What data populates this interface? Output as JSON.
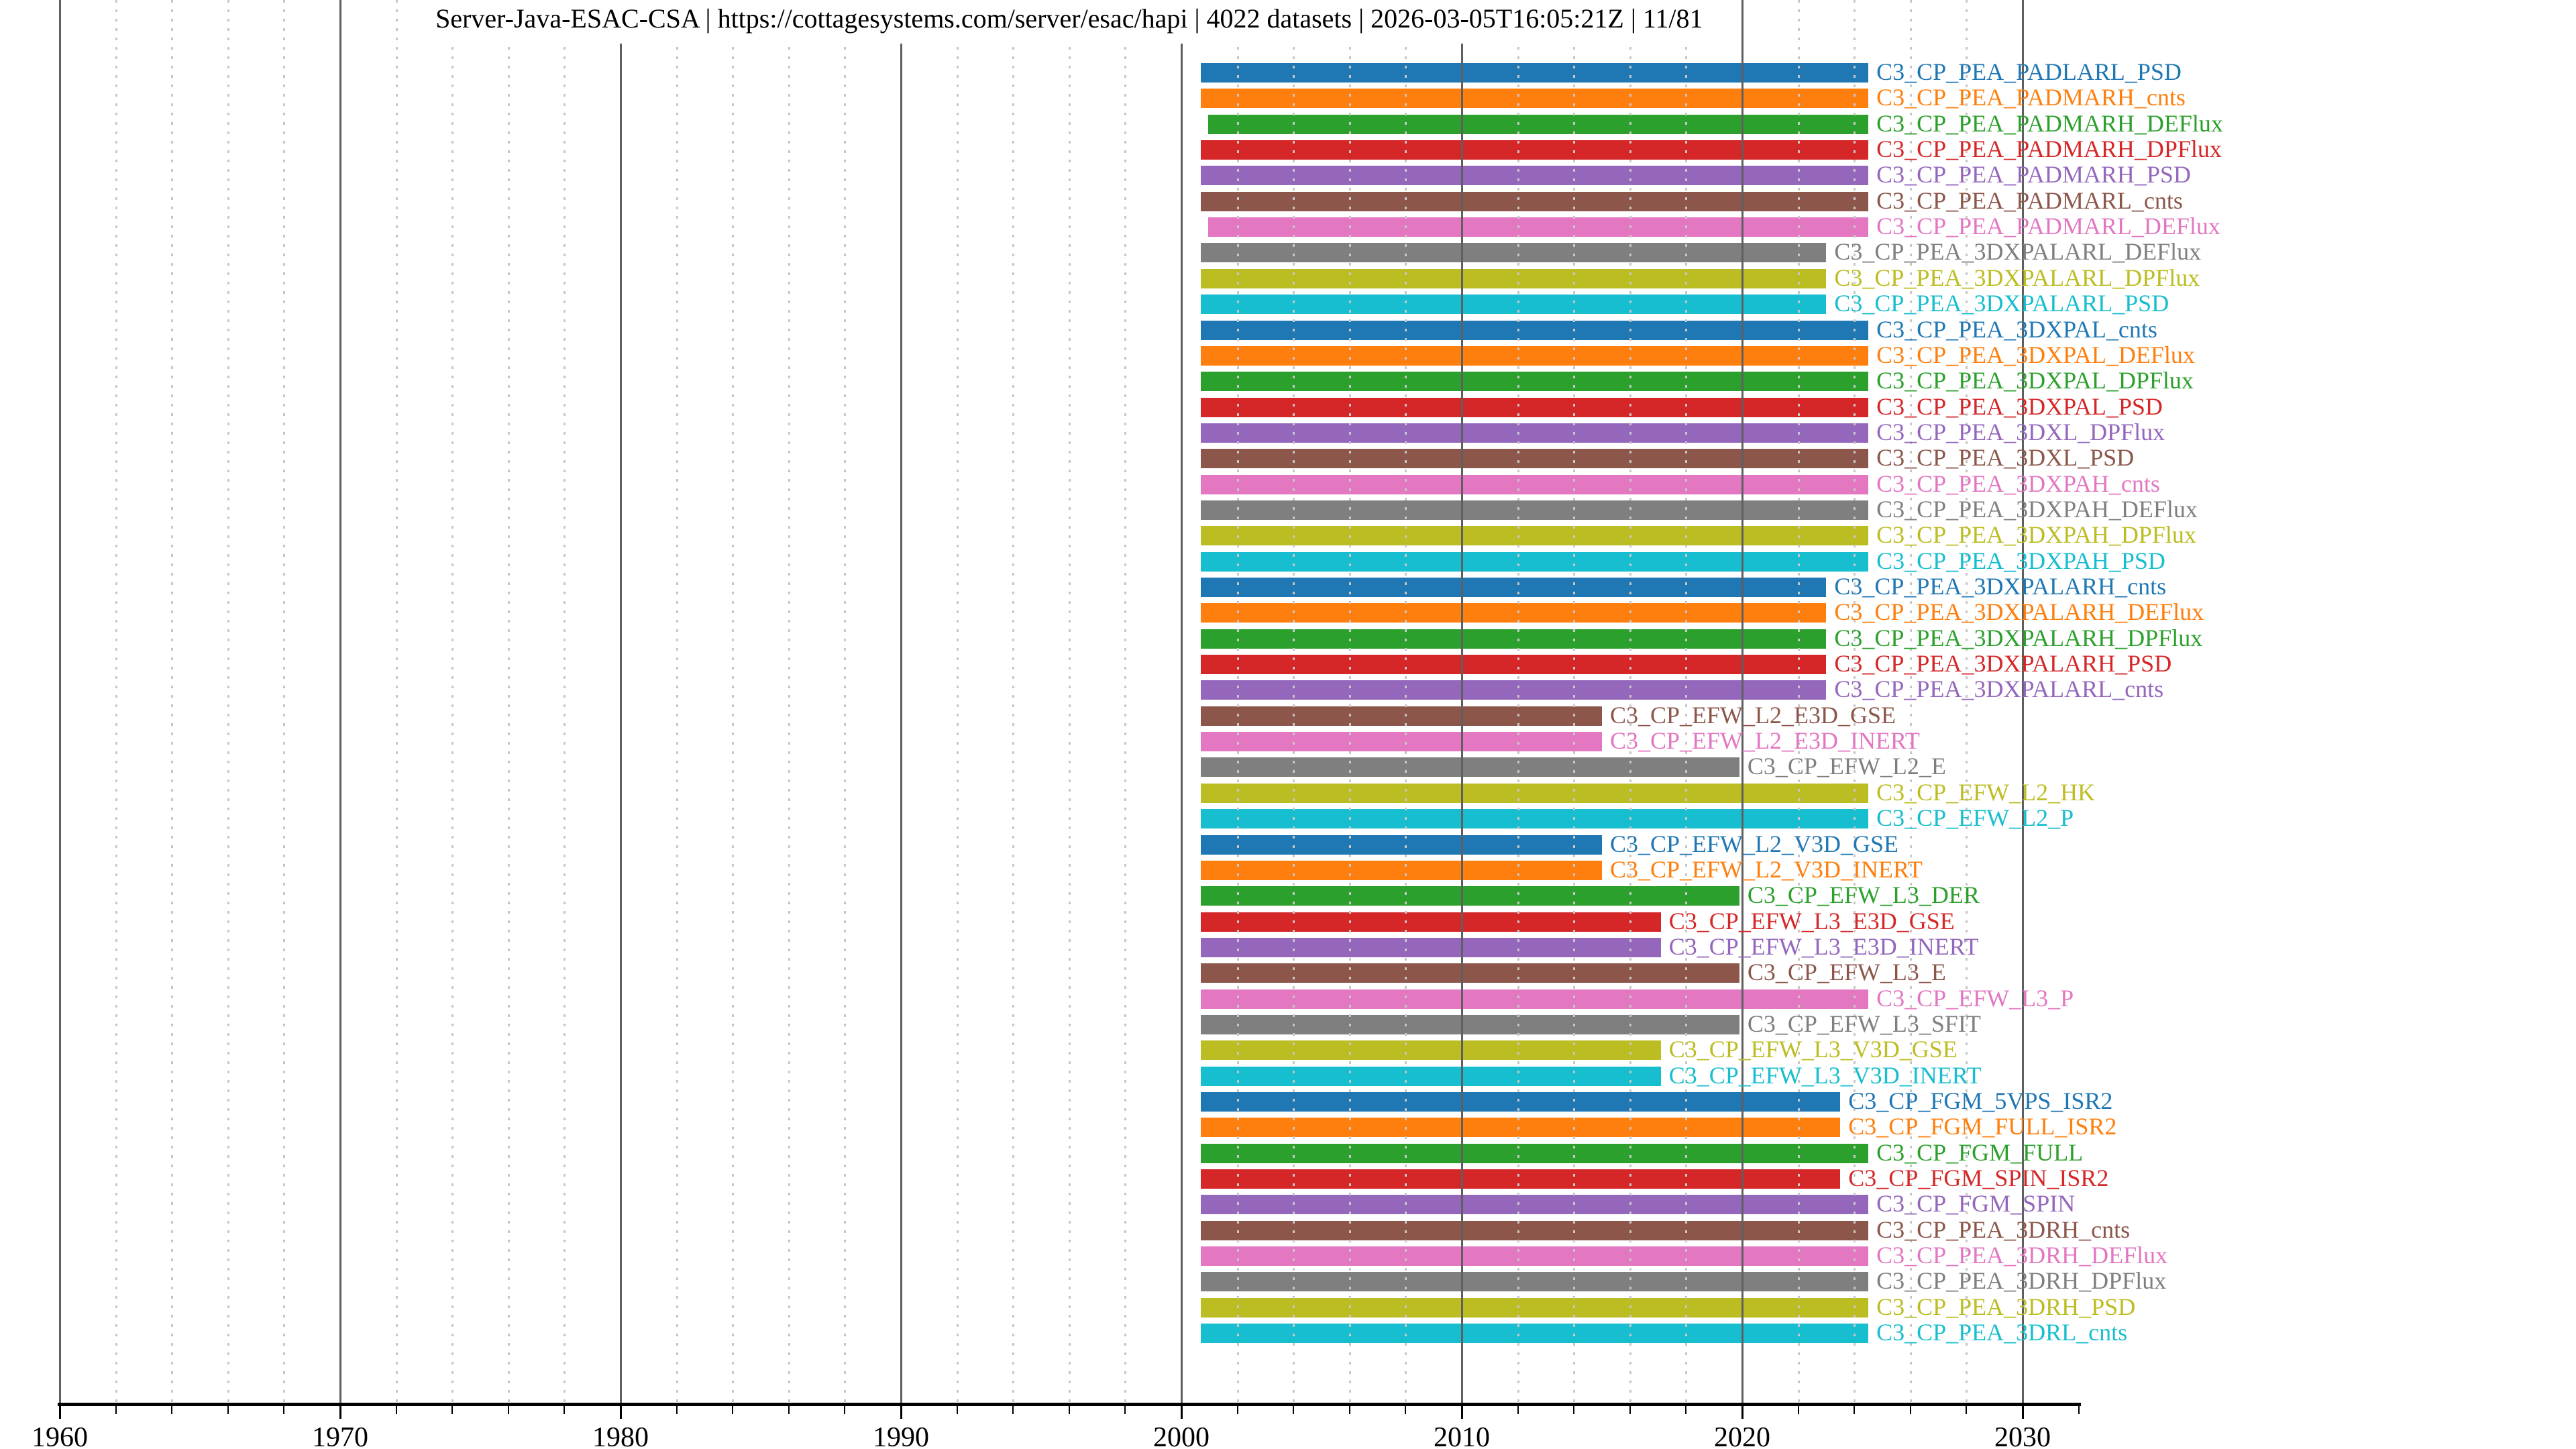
{
  "title": "Server-Java-ESAC-CSA | https://cottagesystems.com/server/esac/hapi | 4022 datasets | 2026-03-05T16:05:21Z | 11/81",
  "chart_data": {
    "type": "bar",
    "subtype": "time-coverage-gantt",
    "title": "Server-Java-ESAC-CSA | https://cottagesystems.com/server/esac/hapi | 4022 datasets | 2026-03-05T16:05:21Z | 11/81",
    "xlabel": "",
    "ylabel": "",
    "xlim": [
      1960,
      2032
    ],
    "x_major_ticks": [
      1960,
      1970,
      1980,
      1990,
      2000,
      2010,
      2020,
      2030
    ],
    "x_tick_labels": [
      "1960",
      "1970",
      "1980",
      "1990",
      "2000",
      "2010",
      "2020",
      "2030"
    ],
    "x_minor_tick_step_years": 2,
    "grid": "full-height vertical; solid dark at decades, dotted light at 2-year minors",
    "legend_position": "none",
    "palette_tab10": [
      "#1f77b4",
      "#ff7f0e",
      "#2ca02c",
      "#d62728",
      "#9467bd",
      "#8c564b",
      "#e377c2",
      "#7f7f7f",
      "#bcbd22",
      "#17becf"
    ],
    "rows": [
      {
        "label": "C3_CP_PEA_PADLARL_PSD",
        "start": 2000.7,
        "end": 2024.5,
        "color": "#1f77b4"
      },
      {
        "label": "C3_CP_PEA_PADMARH_cnts",
        "start": 2000.7,
        "end": 2024.5,
        "color": "#ff7f0e"
      },
      {
        "label": "C3_CP_PEA_PADMARH_DEFlux",
        "start": 2000.95,
        "end": 2024.5,
        "color": "#2ca02c"
      },
      {
        "label": "C3_CP_PEA_PADMARH_DPFlux",
        "start": 2000.7,
        "end": 2024.5,
        "color": "#d62728"
      },
      {
        "label": "C3_CP_PEA_PADMARH_PSD",
        "start": 2000.7,
        "end": 2024.5,
        "color": "#9467bd"
      },
      {
        "label": "C3_CP_PEA_PADMARL_cnts",
        "start": 2000.7,
        "end": 2024.5,
        "color": "#8c564b"
      },
      {
        "label": "C3_CP_PEA_PADMARL_DEFlux",
        "start": 2000.95,
        "end": 2024.5,
        "color": "#e377c2"
      },
      {
        "label": "C3_CP_PEA_3DXPALARL_DEFlux",
        "start": 2000.7,
        "end": 2023.0,
        "color": "#7f7f7f"
      },
      {
        "label": "C3_CP_PEA_3DXPALARL_DPFlux",
        "start": 2000.7,
        "end": 2023.0,
        "color": "#bcbd22"
      },
      {
        "label": "C3_CP_PEA_3DXPALARL_PSD",
        "start": 2000.7,
        "end": 2023.0,
        "color": "#17becf"
      },
      {
        "label": "C3_CP_PEA_3DXPAL_cnts",
        "start": 2000.7,
        "end": 2024.5,
        "color": "#1f77b4"
      },
      {
        "label": "C3_CP_PEA_3DXPAL_DEFlux",
        "start": 2000.7,
        "end": 2024.5,
        "color": "#ff7f0e"
      },
      {
        "label": "C3_CP_PEA_3DXPAL_DPFlux",
        "start": 2000.7,
        "end": 2024.5,
        "color": "#2ca02c"
      },
      {
        "label": "C3_CP_PEA_3DXPAL_PSD",
        "start": 2000.7,
        "end": 2024.5,
        "color": "#d62728"
      },
      {
        "label": "C3_CP_PEA_3DXL_DPFlux",
        "start": 2000.7,
        "end": 2024.5,
        "color": "#9467bd"
      },
      {
        "label": "C3_CP_PEA_3DXL_PSD",
        "start": 2000.7,
        "end": 2024.5,
        "color": "#8c564b"
      },
      {
        "label": "C3_CP_PEA_3DXPAH_cnts",
        "start": 2000.7,
        "end": 2024.5,
        "color": "#e377c2"
      },
      {
        "label": "C3_CP_PEA_3DXPAH_DEFlux",
        "start": 2000.7,
        "end": 2024.5,
        "color": "#7f7f7f"
      },
      {
        "label": "C3_CP_PEA_3DXPAH_DPFlux",
        "start": 2000.7,
        "end": 2024.5,
        "color": "#bcbd22"
      },
      {
        "label": "C3_CP_PEA_3DXPAH_PSD",
        "start": 2000.7,
        "end": 2024.5,
        "color": "#17becf"
      },
      {
        "label": "C3_CP_PEA_3DXPALARH_cnts",
        "start": 2000.7,
        "end": 2023.0,
        "color": "#1f77b4"
      },
      {
        "label": "C3_CP_PEA_3DXPALARH_DEFlux",
        "start": 2000.7,
        "end": 2023.0,
        "color": "#ff7f0e"
      },
      {
        "label": "C3_CP_PEA_3DXPALARH_DPFlux",
        "start": 2000.7,
        "end": 2023.0,
        "color": "#2ca02c"
      },
      {
        "label": "C3_CP_PEA_3DXPALARH_PSD",
        "start": 2000.7,
        "end": 2023.0,
        "color": "#d62728"
      },
      {
        "label": "C3_CP_PEA_3DXPALARL_cnts",
        "start": 2000.7,
        "end": 2023.0,
        "color": "#9467bd"
      },
      {
        "label": "C3_CP_EFW_L2_E3D_GSE",
        "start": 2000.7,
        "end": 2015.0,
        "color": "#8c564b"
      },
      {
        "label": "C3_CP_EFW_L2_E3D_INERT",
        "start": 2000.7,
        "end": 2015.0,
        "color": "#e377c2"
      },
      {
        "label": "C3_CP_EFW_L2_E",
        "start": 2000.7,
        "end": 2019.9,
        "color": "#7f7f7f"
      },
      {
        "label": "C3_CP_EFW_L2_HK",
        "start": 2000.7,
        "end": 2024.5,
        "color": "#bcbd22"
      },
      {
        "label": "C3_CP_EFW_L2_P",
        "start": 2000.7,
        "end": 2024.5,
        "color": "#17becf"
      },
      {
        "label": "C3_CP_EFW_L2_V3D_GSE",
        "start": 2000.7,
        "end": 2015.0,
        "color": "#1f77b4"
      },
      {
        "label": "C3_CP_EFW_L2_V3D_INERT",
        "start": 2000.7,
        "end": 2015.0,
        "color": "#ff7f0e"
      },
      {
        "label": "C3_CP_EFW_L3_DER",
        "start": 2000.7,
        "end": 2019.9,
        "color": "#2ca02c"
      },
      {
        "label": "C3_CP_EFW_L3_E3D_GSE",
        "start": 2000.7,
        "end": 2017.1,
        "color": "#d62728"
      },
      {
        "label": "C3_CP_EFW_L3_E3D_INERT",
        "start": 2000.7,
        "end": 2017.1,
        "color": "#9467bd"
      },
      {
        "label": "C3_CP_EFW_L3_E",
        "start": 2000.7,
        "end": 2019.9,
        "color": "#8c564b"
      },
      {
        "label": "C3_CP_EFW_L3_P",
        "start": 2000.7,
        "end": 2024.5,
        "color": "#e377c2"
      },
      {
        "label": "C3_CP_EFW_L3_SFIT",
        "start": 2000.7,
        "end": 2019.9,
        "color": "#7f7f7f"
      },
      {
        "label": "C3_CP_EFW_L3_V3D_GSE",
        "start": 2000.7,
        "end": 2017.1,
        "color": "#bcbd22"
      },
      {
        "label": "C3_CP_EFW_L3_V3D_INERT",
        "start": 2000.7,
        "end": 2017.1,
        "color": "#17becf"
      },
      {
        "label": "C3_CP_FGM_5VPS_ISR2",
        "start": 2000.7,
        "end": 2023.5,
        "color": "#1f77b4"
      },
      {
        "label": "C3_CP_FGM_FULL_ISR2",
        "start": 2000.7,
        "end": 2023.5,
        "color": "#ff7f0e"
      },
      {
        "label": "C3_CP_FGM_FULL",
        "start": 2000.7,
        "end": 2024.5,
        "color": "#2ca02c"
      },
      {
        "label": "C3_CP_FGM_SPIN_ISR2",
        "start": 2000.7,
        "end": 2023.5,
        "color": "#d62728"
      },
      {
        "label": "C3_CP_FGM_SPIN",
        "start": 2000.7,
        "end": 2024.5,
        "color": "#9467bd"
      },
      {
        "label": "C3_CP_PEA_3DRH_cnts",
        "start": 2000.7,
        "end": 2024.5,
        "color": "#8c564b"
      },
      {
        "label": "C3_CP_PEA_3DRH_DEFlux",
        "start": 2000.7,
        "end": 2024.5,
        "color": "#e377c2"
      },
      {
        "label": "C3_CP_PEA_3DRH_DPFlux",
        "start": 2000.7,
        "end": 2024.5,
        "color": "#7f7f7f"
      },
      {
        "label": "C3_CP_PEA_3DRH_PSD",
        "start": 2000.7,
        "end": 2024.5,
        "color": "#bcbd22"
      },
      {
        "label": "C3_CP_PEA_3DRL_cnts",
        "start": 2000.7,
        "end": 2024.5,
        "color": "#17becf"
      }
    ]
  }
}
